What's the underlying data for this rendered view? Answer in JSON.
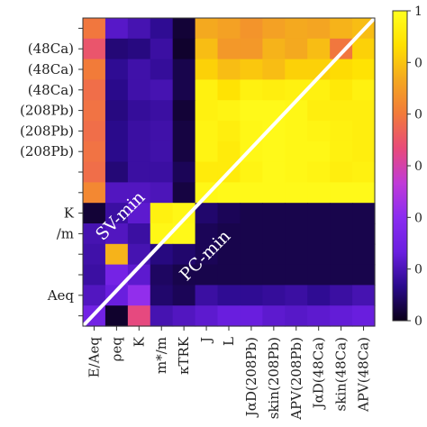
{
  "chart_data": {
    "type": "heatmap",
    "title": "",
    "row_labels": [
      "",
      "(48Ca)",
      "(48Ca)",
      "(48Ca)",
      "(208Pb)",
      "(208Pb)",
      "(208Pb)",
      "",
      "",
      "K",
      "/m",
      "",
      "",
      "Aeq",
      ""
    ],
    "column_labels": [
      "E/Aeq",
      "ρeq",
      "K",
      "m*/m",
      "κTRK",
      "J",
      "L",
      "JαD(208Pb)",
      "skin(208Pb)",
      "APV(208Pb)",
      "JαD(48Ca)",
      "skin(48Ca)",
      "APV(48Ca)"
    ],
    "colorbar_ticks": [
      "1",
      "0",
      "0",
      "0",
      "0",
      "0",
      "0"
    ],
    "colormap": [
      "#0a0018",
      "#2a0a8c",
      "#6a1ee0",
      "#8a2cf0",
      "#c03ad8",
      "#e84a7a",
      "#f27a3a",
      "#f4a820",
      "#ffe000",
      "#ffff1e"
    ],
    "annotations": [
      "SV-min",
      "PC-min"
    ],
    "values": [
      [
        0.66,
        0.19,
        0.16,
        0.12,
        0.03,
        0.78,
        0.76,
        0.73,
        0.76,
        0.78,
        0.77,
        0.8,
        0.82
      ],
      [
        0.58,
        0.09,
        0.1,
        0.14,
        0.02,
        0.82,
        0.74,
        0.74,
        0.8,
        0.78,
        0.82,
        0.66,
        0.86
      ],
      [
        0.67,
        0.12,
        0.15,
        0.13,
        0.05,
        0.86,
        0.82,
        0.84,
        0.82,
        0.86,
        0.86,
        0.88,
        0.9
      ],
      [
        0.64,
        0.11,
        0.15,
        0.16,
        0.05,
        0.95,
        0.9,
        0.95,
        0.94,
        0.95,
        0.95,
        0.92,
        0.95
      ],
      [
        0.65,
        0.1,
        0.13,
        0.14,
        0.03,
        0.95,
        0.96,
        0.98,
        0.98,
        0.97,
        0.94,
        0.94,
        0.94
      ],
      [
        0.64,
        0.11,
        0.14,
        0.15,
        0.04,
        0.96,
        0.94,
        0.97,
        0.98,
        0.97,
        0.96,
        0.95,
        0.94
      ],
      [
        0.65,
        0.11,
        0.14,
        0.15,
        0.04,
        0.96,
        0.93,
        0.97,
        0.98,
        0.97,
        0.97,
        0.95,
        0.94
      ],
      [
        0.64,
        0.09,
        0.14,
        0.14,
        0.06,
        0.93,
        0.93,
        0.96,
        0.98,
        0.97,
        0.96,
        0.94,
        0.95
      ],
      [
        0.7,
        0.18,
        0.18,
        0.17,
        0.04,
        0.97,
        0.98,
        0.98,
        0.98,
        0.98,
        0.98,
        0.98,
        0.98
      ],
      [
        0.03,
        0.14,
        0.2,
        0.95,
        0.97,
        0.08,
        0.06,
        0.05,
        0.05,
        0.05,
        0.05,
        0.05,
        0.05
      ],
      [
        0.16,
        0.18,
        0.14,
        0.97,
        0.98,
        0.06,
        0.05,
        0.05,
        0.05,
        0.05,
        0.05,
        0.05,
        0.05
      ],
      [
        0.15,
        0.8,
        0.16,
        0.1,
        0.08,
        0.06,
        0.05,
        0.05,
        0.05,
        0.05,
        0.05,
        0.05,
        0.05
      ],
      [
        0.14,
        0.26,
        0.2,
        0.07,
        0.05,
        0.05,
        0.05,
        0.05,
        0.05,
        0.05,
        0.05,
        0.05,
        0.05
      ],
      [
        0.18,
        0.22,
        0.35,
        0.08,
        0.06,
        0.14,
        0.12,
        0.12,
        0.13,
        0.14,
        0.12,
        0.14,
        0.16
      ],
      [
        0.25,
        0.02,
        0.55,
        0.16,
        0.18,
        0.2,
        0.22,
        0.22,
        0.2,
        0.19,
        0.2,
        0.21,
        0.22
      ]
    ]
  }
}
